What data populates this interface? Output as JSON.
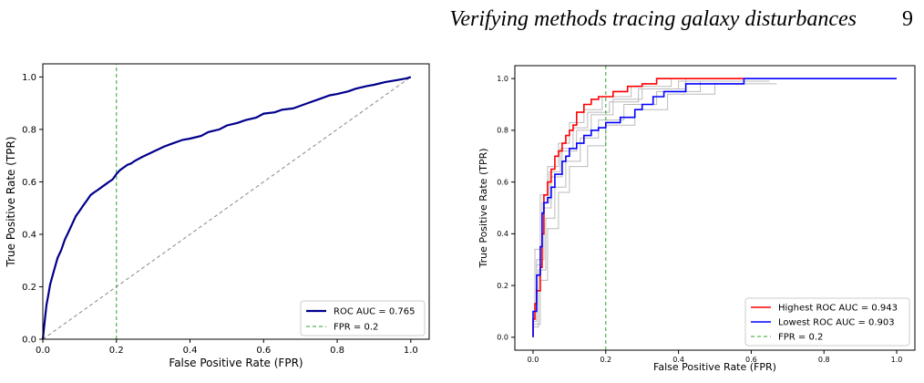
{
  "header": {
    "running_title": "Verifying methods tracing galaxy disturbances",
    "page_number": "9"
  },
  "chart_data": [
    {
      "type": "line",
      "xlabel": "False Positive Rate (FPR)",
      "ylabel": "True Positive Rate (TPR)",
      "xlim": [
        0,
        1.05
      ],
      "ylim": [
        0,
        1.05
      ],
      "xticks": [
        "0.0",
        "0.2",
        "0.4",
        "0.6",
        "0.8",
        "1.0"
      ],
      "yticks": [
        "0.0",
        "0.2",
        "0.4",
        "0.6",
        "0.8",
        "1.0"
      ],
      "legend_position": "bottom-right",
      "grid": false,
      "series": [
        {
          "name": "ROC AUC = 0.765",
          "color": "#00008b",
          "x": [
            0,
            0.003,
            0.006,
            0.01,
            0.015,
            0.02,
            0.03,
            0.04,
            0.05,
            0.06,
            0.07,
            0.08,
            0.09,
            0.1,
            0.11,
            0.12,
            0.13,
            0.14,
            0.15,
            0.16,
            0.17,
            0.18,
            0.19,
            0.2,
            0.21,
            0.22,
            0.23,
            0.24,
            0.25,
            0.27,
            0.3,
            0.33,
            0.35,
            0.38,
            0.4,
            0.43,
            0.45,
            0.48,
            0.5,
            0.53,
            0.55,
            0.58,
            0.6,
            0.63,
            0.65,
            0.68,
            0.7,
            0.72,
            0.75,
            0.78,
            0.8,
            0.83,
            0.85,
            0.88,
            0.9,
            0.93,
            0.95,
            0.97,
            0.99,
            1.0
          ],
          "y": [
            0,
            0.04,
            0.08,
            0.13,
            0.17,
            0.21,
            0.26,
            0.31,
            0.34,
            0.38,
            0.41,
            0.44,
            0.47,
            0.49,
            0.51,
            0.53,
            0.55,
            0.56,
            0.57,
            0.58,
            0.59,
            0.6,
            0.61,
            0.63,
            0.645,
            0.655,
            0.665,
            0.67,
            0.68,
            0.695,
            0.715,
            0.735,
            0.745,
            0.76,
            0.765,
            0.775,
            0.79,
            0.8,
            0.815,
            0.825,
            0.835,
            0.845,
            0.86,
            0.865,
            0.875,
            0.88,
            0.89,
            0.9,
            0.915,
            0.93,
            0.935,
            0.945,
            0.955,
            0.965,
            0.97,
            0.98,
            0.985,
            0.99,
            0.995,
            1.0
          ]
        },
        {
          "name": "FPR = 0.2",
          "color": "#2ca02c",
          "style": "dashed",
          "x": [
            0.2,
            0.2
          ],
          "y": [
            0,
            1.05
          ]
        },
        {
          "name": "",
          "color": "#888888",
          "style": "dashed",
          "x": [
            0,
            1
          ],
          "y": [
            0,
            1
          ]
        }
      ]
    },
    {
      "type": "line",
      "xlabel": "False Positive Rate (FPR)",
      "ylabel": "True Positive Rate (TPR)",
      "xlim": [
        -0.05,
        1.05
      ],
      "ylim": [
        -0.05,
        1.05
      ],
      "xticks": [
        "0.0",
        "0.2",
        "0.4",
        "0.6",
        "0.8",
        "1.0"
      ],
      "yticks": [
        "0.0",
        "0.2",
        "0.4",
        "0.6",
        "0.8",
        "1.0"
      ],
      "legend_position": "bottom-right",
      "grid": false,
      "series": [
        {
          "name": "Highest ROC AUC = 0.943",
          "color": "#ff0000",
          "x": [
            0,
            0,
            0.005,
            0.005,
            0.01,
            0.01,
            0.02,
            0.02,
            0.025,
            0.025,
            0.03,
            0.03,
            0.04,
            0.04,
            0.05,
            0.05,
            0.06,
            0.06,
            0.07,
            0.07,
            0.08,
            0.08,
            0.09,
            0.09,
            0.1,
            0.1,
            0.11,
            0.11,
            0.12,
            0.12,
            0.14,
            0.14,
            0.16,
            0.16,
            0.18,
            0.18,
            0.22,
            0.22,
            0.26,
            0.26,
            0.3,
            0.3,
            0.34,
            0.34,
            0.58
          ],
          "y": [
            0,
            0.07,
            0.07,
            0.13,
            0.13,
            0.18,
            0.18,
            0.27,
            0.27,
            0.4,
            0.4,
            0.55,
            0.55,
            0.6,
            0.6,
            0.65,
            0.65,
            0.7,
            0.7,
            0.72,
            0.72,
            0.75,
            0.75,
            0.78,
            0.78,
            0.8,
            0.8,
            0.82,
            0.82,
            0.87,
            0.87,
            0.9,
            0.9,
            0.92,
            0.92,
            0.93,
            0.93,
            0.95,
            0.95,
            0.97,
            0.97,
            0.98,
            0.98,
            1.0,
            1.0
          ]
        },
        {
          "name": "Lowest ROC AUC = 0.903",
          "color": "#0000ff",
          "x": [
            0,
            0,
            0.01,
            0.01,
            0.02,
            0.02,
            0.025,
            0.025,
            0.03,
            0.03,
            0.04,
            0.04,
            0.05,
            0.05,
            0.06,
            0.06,
            0.08,
            0.08,
            0.09,
            0.09,
            0.1,
            0.1,
            0.12,
            0.12,
            0.14,
            0.14,
            0.16,
            0.16,
            0.18,
            0.18,
            0.2,
            0.2,
            0.24,
            0.24,
            0.28,
            0.28,
            0.3,
            0.3,
            0.33,
            0.33,
            0.36,
            0.36,
            0.42,
            0.42,
            0.58,
            0.58,
            1.0
          ],
          "y": [
            0,
            0.1,
            0.1,
            0.24,
            0.24,
            0.35,
            0.35,
            0.48,
            0.48,
            0.52,
            0.52,
            0.54,
            0.54,
            0.58,
            0.58,
            0.63,
            0.63,
            0.68,
            0.68,
            0.7,
            0.7,
            0.73,
            0.73,
            0.75,
            0.75,
            0.78,
            0.78,
            0.8,
            0.8,
            0.81,
            0.81,
            0.83,
            0.83,
            0.85,
            0.85,
            0.88,
            0.88,
            0.9,
            0.9,
            0.93,
            0.93,
            0.95,
            0.95,
            0.98,
            0.98,
            1.0,
            1.0
          ]
        },
        {
          "name": "FPR = 0.2",
          "color": "#2ca02c",
          "style": "dashed",
          "x": [
            0.2,
            0.2
          ],
          "y": [
            -0.05,
            1.05
          ]
        }
      ],
      "background_series": [
        {
          "color": "#bbbbbb",
          "x": [
            0,
            0.01,
            0.01,
            0.03,
            0.03,
            0.05,
            0.05,
            0.08,
            0.08,
            0.12,
            0.12,
            0.16,
            0.16,
            0.22,
            0.22,
            0.3,
            0.3,
            0.42,
            0.42,
            0.6
          ],
          "y": [
            0.06,
            0.06,
            0.3,
            0.3,
            0.5,
            0.5,
            0.62,
            0.62,
            0.72,
            0.72,
            0.8,
            0.8,
            0.86,
            0.86,
            0.92,
            0.92,
            0.96,
            0.96,
            1.0,
            1.0
          ]
        },
        {
          "color": "#bbbbbb",
          "x": [
            0,
            0.015,
            0.015,
            0.035,
            0.035,
            0.06,
            0.06,
            0.09,
            0.09,
            0.13,
            0.13,
            0.18,
            0.18,
            0.25,
            0.25,
            0.34,
            0.34,
            0.46,
            0.46,
            0.65
          ],
          "y": [
            0.04,
            0.04,
            0.26,
            0.26,
            0.46,
            0.46,
            0.58,
            0.58,
            0.68,
            0.68,
            0.77,
            0.77,
            0.84,
            0.84,
            0.9,
            0.9,
            0.95,
            0.95,
            0.99,
            0.99
          ]
        },
        {
          "color": "#bbbbbb",
          "x": [
            0,
            0.005,
            0.005,
            0.02,
            0.02,
            0.04,
            0.04,
            0.07,
            0.07,
            0.1,
            0.1,
            0.14,
            0.14,
            0.19,
            0.19,
            0.27,
            0.27,
            0.38,
            0.38,
            0.55
          ],
          "y": [
            0.08,
            0.08,
            0.34,
            0.34,
            0.55,
            0.55,
            0.66,
            0.66,
            0.75,
            0.75,
            0.83,
            0.83,
            0.88,
            0.88,
            0.93,
            0.93,
            0.97,
            0.97,
            1.0,
            1.0
          ]
        },
        {
          "color": "#bbbbbb",
          "x": [
            0,
            0.02,
            0.02,
            0.04,
            0.04,
            0.07,
            0.07,
            0.1,
            0.1,
            0.15,
            0.15,
            0.2,
            0.2,
            0.28,
            0.28,
            0.37,
            0.37,
            0.5,
            0.5,
            0.67
          ],
          "y": [
            0.05,
            0.05,
            0.22,
            0.22,
            0.42,
            0.42,
            0.56,
            0.56,
            0.66,
            0.66,
            0.74,
            0.74,
            0.82,
            0.82,
            0.88,
            0.88,
            0.94,
            0.94,
            0.98,
            0.98
          ]
        },
        {
          "color": "#bbbbbb",
          "x": [
            0,
            0.01,
            0.01,
            0.025,
            0.025,
            0.045,
            0.045,
            0.075,
            0.075,
            0.11,
            0.11,
            0.15,
            0.15,
            0.21,
            0.21,
            0.29,
            0.29,
            0.4,
            0.4,
            0.62
          ],
          "y": [
            0.07,
            0.07,
            0.28,
            0.28,
            0.52,
            0.52,
            0.64,
            0.64,
            0.73,
            0.73,
            0.81,
            0.81,
            0.87,
            0.87,
            0.91,
            0.91,
            0.96,
            0.96,
            0.99,
            0.99
          ]
        }
      ]
    }
  ]
}
